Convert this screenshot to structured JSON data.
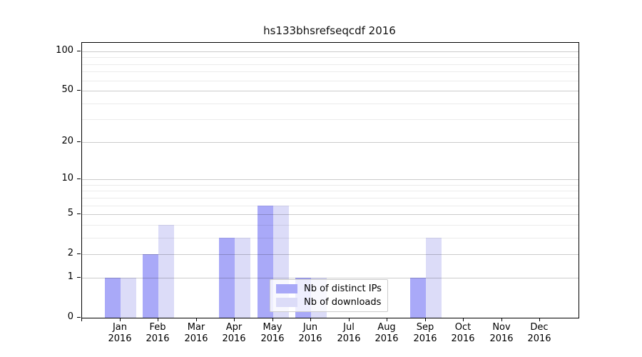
{
  "title": "hs133bhsrefseqcdf 2016",
  "chart_data": {
    "type": "bar",
    "title": "hs133bhsrefseqcdf 2016",
    "y_scale": "log10(1+x)",
    "categories": [
      "Jan",
      "Feb",
      "Mar",
      "Apr",
      "May",
      "Jun",
      "Jul",
      "Aug",
      "Sep",
      "Oct",
      "Nov",
      "Dec"
    ],
    "category_year": "2016",
    "series": [
      {
        "name": "Nb of distinct IPs",
        "color": "#a9a9f8",
        "values": [
          1,
          2,
          0,
          3,
          6,
          1,
          0,
          0,
          1,
          0,
          0,
          0
        ]
      },
      {
        "name": "Nb of downloads",
        "color": "#dcdcf8",
        "values": [
          1,
          4,
          0,
          3,
          6,
          1,
          0,
          0,
          3,
          0,
          0,
          0
        ]
      }
    ],
    "yticks": [
      0,
      1,
      2,
      5,
      10,
      20,
      50,
      100
    ],
    "minor_yticks": [
      3,
      4,
      6,
      7,
      8,
      9,
      30,
      40,
      60,
      70,
      80,
      90
    ],
    "ylim": [
      0,
      115
    ],
    "xlabel": "",
    "ylabel": "",
    "grid": "on",
    "legend_position": "lower center"
  },
  "colors": {
    "background": "#ffffff",
    "spine": "#000000",
    "major_grid": "#cccccc",
    "minor_grid": "#ebebeb",
    "bar_distinct_ips": "#a9a9f8",
    "bar_downloads": "#dcdcf8",
    "legend_border": "#cccccc"
  }
}
